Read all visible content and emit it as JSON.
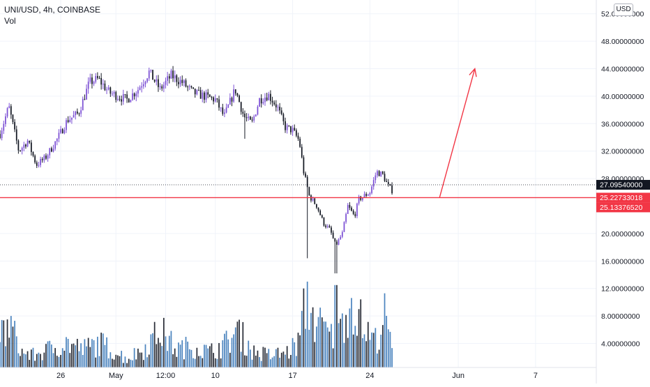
{
  "header": {
    "title": "UNI/USD, 4h, COINBASE",
    "volume_label": "Vol",
    "currency_button": "USD"
  },
  "colors": {
    "up_candle": "#7b4fd4",
    "down_candle": "#131722",
    "volume_up": "#3a78b8",
    "volume_down": "#131722",
    "support_line": "#f23645",
    "arrow": "#f23645",
    "last_price_tag": "#131722",
    "axis_text": "#131722",
    "grid": "#f0f3fa"
  },
  "chart_data": {
    "type": "candlestick",
    "symbol": "UNI/USD",
    "interval": "4h",
    "exchange": "COINBASE",
    "y_axis": {
      "ticks": [
        {
          "value": 52,
          "label": "52.00000000"
        },
        {
          "value": 48,
          "label": "48.00000000"
        },
        {
          "value": 44,
          "label": "44.00000000"
        },
        {
          "value": 40,
          "label": "40.00000000"
        },
        {
          "value": 36,
          "label": "36.00000000"
        },
        {
          "value": 32,
          "label": "32.00000000"
        },
        {
          "value": 28,
          "label": "28.00000000"
        },
        {
          "value": 20,
          "label": "20.00000000"
        },
        {
          "value": 16,
          "label": "16.00000000"
        },
        {
          "value": 12,
          "label": "12.00000000"
        },
        {
          "value": 8,
          "label": "8.00000000"
        },
        {
          "value": 4,
          "label": "4.00000000"
        }
      ],
      "range": [
        0.5,
        54
      ]
    },
    "x_axis": {
      "ticks": [
        {
          "day": 26,
          "label": "26"
        },
        {
          "day": 31,
          "label": "May"
        },
        {
          "day": 35.5,
          "label": "12:00"
        },
        {
          "day": 40,
          "label": "10"
        },
        {
          "day": 47,
          "label": "17"
        },
        {
          "day": 54,
          "label": "24"
        },
        {
          "day": 62,
          "label": "Jun"
        },
        {
          "day": 69,
          "label": "7"
        }
      ],
      "range": [
        20.5,
        74.5
      ]
    },
    "price_labels": [
      {
        "value": 27.0954,
        "label": "27.09540000",
        "kind": "last_price"
      },
      {
        "value": 25.22733018,
        "label": "25.22733018",
        "kind": "horizontal_line"
      },
      {
        "value": 25.1337652,
        "label": "25.13376520",
        "kind": "horizontal_line_lower"
      }
    ],
    "horizontal_line": {
      "value": 25.2273
    },
    "arrow": {
      "from": {
        "day": 60.3,
        "price": 25.2
      },
      "to": {
        "day": 63.5,
        "price": 44.0
      }
    },
    "ohlc_anchors": [
      [
        20.5,
        34.5
      ],
      [
        21.3,
        38.5
      ],
      [
        22.2,
        32.0
      ],
      [
        23.0,
        33.5
      ],
      [
        23.8,
        30.0
      ],
      [
        24.6,
        31.0
      ],
      [
        25.6,
        33.5
      ],
      [
        26.6,
        36.5
      ],
      [
        27.6,
        37.5
      ],
      [
        28.6,
        42.0
      ],
      [
        29.4,
        42.5
      ],
      [
        30.4,
        40.5
      ],
      [
        31.2,
        40.0
      ],
      [
        32.0,
        39.5
      ],
      [
        33.0,
        41.0
      ],
      [
        34.0,
        43.5
      ],
      [
        35.0,
        41.0
      ],
      [
        36.0,
        43.0
      ],
      [
        37.0,
        42.0
      ],
      [
        38.0,
        40.5
      ],
      [
        39.0,
        40.0
      ],
      [
        40.0,
        39.5
      ],
      [
        40.8,
        37.0
      ],
      [
        41.8,
        41.0
      ],
      [
        42.6,
        37.0
      ],
      [
        43.3,
        36.0
      ],
      [
        44.0,
        39.5
      ],
      [
        44.8,
        40.2
      ],
      [
        45.6,
        38.5
      ],
      [
        46.3,
        35.5
      ],
      [
        47.0,
        35.0
      ],
      [
        47.6,
        33.5
      ],
      [
        48.0,
        29.0
      ],
      [
        48.5,
        25.5
      ],
      [
        49.2,
        24.0
      ],
      [
        49.8,
        21.5
      ],
      [
        50.4,
        20.5
      ],
      [
        50.9,
        18.2
      ],
      [
        51.5,
        20.0
      ],
      [
        52.0,
        24.0
      ],
      [
        52.6,
        22.5
      ],
      [
        53.0,
        25.0
      ],
      [
        54.0,
        26.0
      ],
      [
        54.6,
        29.0
      ],
      [
        55.2,
        28.5
      ],
      [
        55.6,
        27.0
      ],
      [
        56.0,
        26.3
      ]
    ],
    "volume_anchors": [
      [
        20.5,
        6.0
      ],
      [
        21.5,
        7.0
      ],
      [
        22.5,
        3.0
      ],
      [
        23.5,
        2.5
      ],
      [
        25.0,
        3.5
      ],
      [
        26.5,
        4.5
      ],
      [
        28.0,
        3.5
      ],
      [
        29.5,
        4.5
      ],
      [
        31.0,
        3.0
      ],
      [
        32.0,
        2.0
      ],
      [
        33.5,
        3.5
      ],
      [
        35.0,
        6.5
      ],
      [
        36.5,
        3.5
      ],
      [
        38.0,
        4.0
      ],
      [
        39.5,
        3.0
      ],
      [
        41.0,
        4.5
      ],
      [
        42.0,
        6.5
      ],
      [
        43.5,
        3.0
      ],
      [
        45.0,
        2.5
      ],
      [
        46.5,
        3.0
      ],
      [
        47.5,
        4.5
      ],
      [
        48.3,
        12.0
      ],
      [
        49.0,
        8.0
      ],
      [
        50.0,
        6.5
      ],
      [
        51.0,
        4.5
      ],
      [
        51.8,
        10.0
      ],
      [
        52.5,
        11.0
      ],
      [
        53.5,
        6.5
      ],
      [
        54.5,
        5.0
      ],
      [
        55.3,
        8.0
      ],
      [
        56.0,
        4.5
      ]
    ],
    "candle_count": 214
  }
}
